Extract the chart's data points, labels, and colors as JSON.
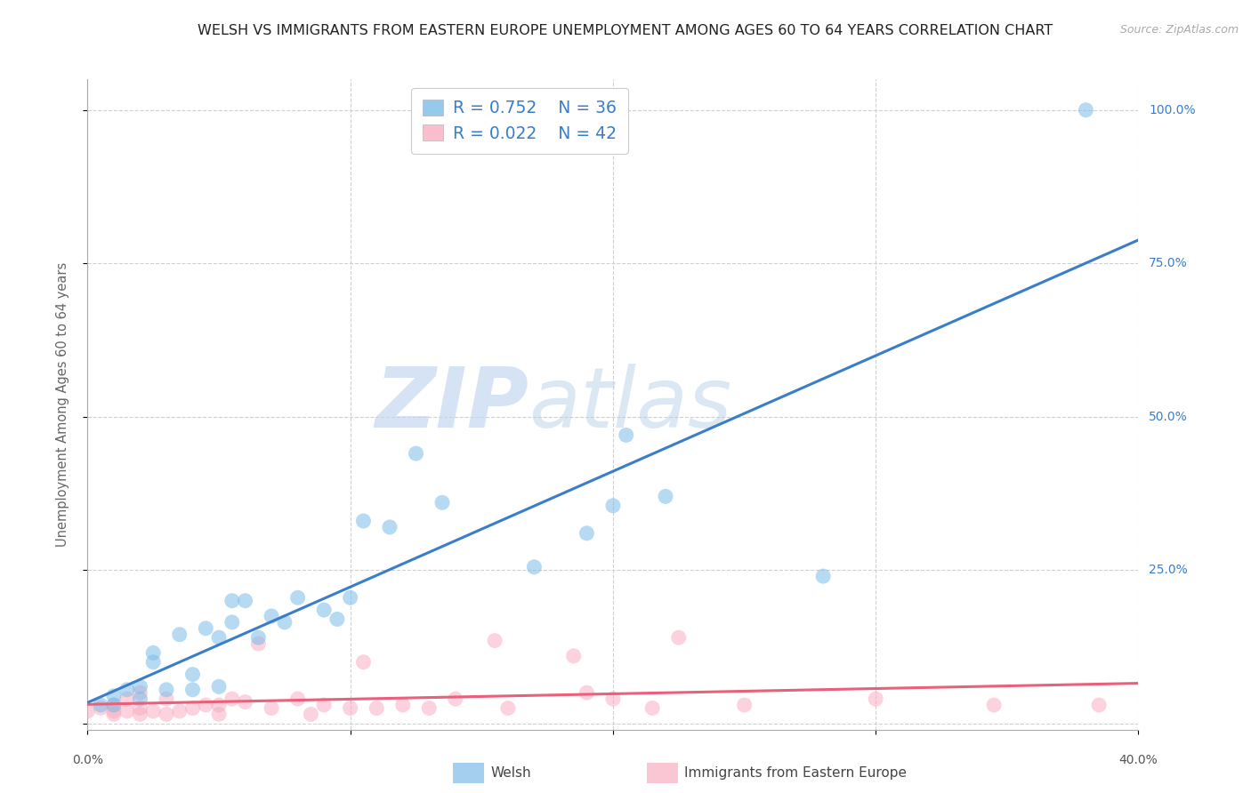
{
  "title": "WELSH VS IMMIGRANTS FROM EASTERN EUROPE UNEMPLOYMENT AMONG AGES 60 TO 64 YEARS CORRELATION CHART",
  "source": "Source: ZipAtlas.com",
  "ylabel": "Unemployment Among Ages 60 to 64 years",
  "xlim": [
    0.0,
    0.4
  ],
  "ylim": [
    -0.01,
    1.05
  ],
  "x_ticks": [
    0.0,
    0.1,
    0.2,
    0.3,
    0.4
  ],
  "x_tick_labels": [
    "0.0%",
    "",
    "",
    "",
    "40.0%"
  ],
  "y_ticks": [
    0.0,
    0.25,
    0.5,
    0.75,
    1.0
  ],
  "y_tick_labels_right": [
    "",
    "25.0%",
    "50.0%",
    "75.0%",
    "100.0%"
  ],
  "welsh_color": "#7bbde8",
  "immigrant_color": "#f9aec2",
  "welsh_line_color": "#3a7dc9",
  "immigrant_line_color": "#e8607a",
  "welsh_R": 0.752,
  "welsh_N": 36,
  "immigrant_R": 0.022,
  "immigrant_N": 42,
  "watermark_zip": "ZIP",
  "watermark_atlas": "atlas",
  "welsh_scatter_x": [
    0.005,
    0.01,
    0.01,
    0.015,
    0.02,
    0.02,
    0.025,
    0.025,
    0.03,
    0.035,
    0.04,
    0.04,
    0.045,
    0.05,
    0.05,
    0.055,
    0.055,
    0.06,
    0.065,
    0.07,
    0.075,
    0.08,
    0.09,
    0.095,
    0.1,
    0.105,
    0.115,
    0.125,
    0.135,
    0.17,
    0.19,
    0.2,
    0.205,
    0.22,
    0.28,
    0.38
  ],
  "welsh_scatter_y": [
    0.03,
    0.03,
    0.045,
    0.055,
    0.04,
    0.06,
    0.1,
    0.115,
    0.055,
    0.145,
    0.055,
    0.08,
    0.155,
    0.06,
    0.14,
    0.165,
    0.2,
    0.2,
    0.14,
    0.175,
    0.165,
    0.205,
    0.185,
    0.17,
    0.205,
    0.33,
    0.32,
    0.44,
    0.36,
    0.255,
    0.31,
    0.355,
    0.47,
    0.37,
    0.24,
    1.0
  ],
  "immigrant_scatter_x": [
    0.0,
    0.005,
    0.01,
    0.01,
    0.01,
    0.015,
    0.015,
    0.02,
    0.02,
    0.02,
    0.025,
    0.03,
    0.03,
    0.035,
    0.04,
    0.045,
    0.05,
    0.05,
    0.055,
    0.06,
    0.065,
    0.07,
    0.08,
    0.085,
    0.09,
    0.1,
    0.105,
    0.11,
    0.12,
    0.13,
    0.14,
    0.155,
    0.16,
    0.185,
    0.19,
    0.2,
    0.215,
    0.225,
    0.25,
    0.3,
    0.345,
    0.385
  ],
  "immigrant_scatter_y": [
    0.02,
    0.025,
    0.015,
    0.02,
    0.03,
    0.02,
    0.04,
    0.015,
    0.025,
    0.05,
    0.02,
    0.015,
    0.04,
    0.02,
    0.025,
    0.03,
    0.015,
    0.03,
    0.04,
    0.035,
    0.13,
    0.025,
    0.04,
    0.015,
    0.03,
    0.025,
    0.1,
    0.025,
    0.03,
    0.025,
    0.04,
    0.135,
    0.025,
    0.11,
    0.05,
    0.04,
    0.025,
    0.14,
    0.03,
    0.04,
    0.03,
    0.03
  ],
  "grid_color": "#d0d0d0",
  "background_color": "#ffffff",
  "legend_R_color": "#3a7dc9",
  "legend_N_color": "#3a7dc9"
}
